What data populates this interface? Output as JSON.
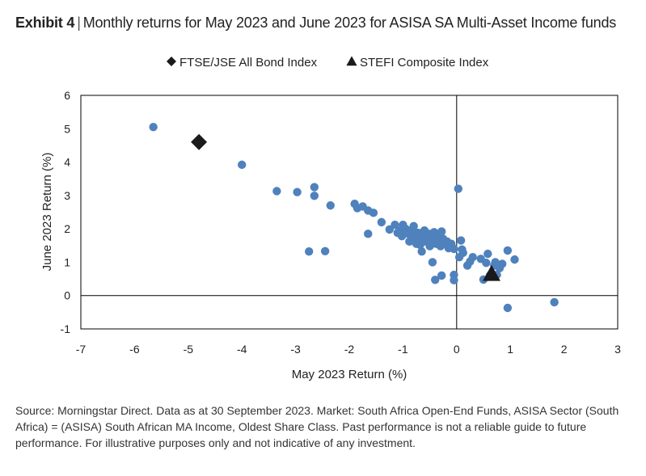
{
  "header": {
    "exhibit_label": "Exhibit 4",
    "separator": "|",
    "title": "Monthly returns for May 2023 and June 2023 for ASISA SA Multi-Asset Income funds"
  },
  "chart_data": {
    "type": "scatter",
    "xlabel": "May 2023 Return (%)",
    "ylabel": "June 2023 Return (%)",
    "xlim": [
      -7,
      3
    ],
    "ylim": [
      -1,
      6
    ],
    "xticks": [
      -7,
      -6,
      -5,
      -4,
      -3,
      -2,
      -1,
      0,
      1,
      2,
      3
    ],
    "yticks": [
      -1,
      0,
      1,
      2,
      3,
      4,
      5,
      6
    ],
    "grid": false,
    "legend_position": "top-center",
    "colors": {
      "funds": "#4f81bd",
      "markers": "#1a1a1a",
      "axes": "#000000"
    },
    "series": [
      {
        "marker": "circle",
        "points": [
          [
            -5.65,
            5.05
          ],
          [
            -4.0,
            3.92
          ],
          [
            -3.35,
            3.13
          ],
          [
            -2.97,
            3.1
          ],
          [
            -2.65,
            3.25
          ],
          [
            -2.65,
            2.99
          ],
          [
            -2.35,
            2.7
          ],
          [
            -2.75,
            1.32
          ],
          [
            -2.45,
            1.33
          ],
          [
            -1.9,
            2.75
          ],
          [
            -1.85,
            2.62
          ],
          [
            -1.75,
            2.67
          ],
          [
            -1.65,
            2.55
          ],
          [
            -1.55,
            2.48
          ],
          [
            -1.4,
            2.2
          ],
          [
            -1.65,
            1.85
          ],
          [
            -1.25,
            1.98
          ],
          [
            -1.15,
            2.12
          ],
          [
            -1.1,
            1.88
          ],
          [
            -1.05,
            1.95
          ],
          [
            -1.0,
            2.12
          ],
          [
            -1.02,
            1.78
          ],
          [
            -0.95,
            2.0
          ],
          [
            -0.9,
            1.85
          ],
          [
            -0.88,
            1.62
          ],
          [
            -0.85,
            1.95
          ],
          [
            -0.8,
            2.08
          ],
          [
            -0.8,
            1.75
          ],
          [
            -0.75,
            1.55
          ],
          [
            -0.72,
            1.88
          ],
          [
            -0.7,
            1.7
          ],
          [
            -0.68,
            1.52
          ],
          [
            -0.65,
            1.32
          ],
          [
            -0.62,
            1.8
          ],
          [
            -0.6,
            1.95
          ],
          [
            -0.58,
            1.62
          ],
          [
            -0.55,
            1.7
          ],
          [
            -0.52,
            1.85
          ],
          [
            -0.5,
            1.48
          ],
          [
            -0.48,
            1.75
          ],
          [
            -0.45,
            1.6
          ],
          [
            -0.42,
            1.9
          ],
          [
            -0.4,
            1.72
          ],
          [
            -0.38,
            1.55
          ],
          [
            -0.35,
            1.8
          ],
          [
            -0.32,
            1.65
          ],
          [
            -0.3,
            1.48
          ],
          [
            -0.28,
            1.92
          ],
          [
            -0.25,
            1.7
          ],
          [
            -0.22,
            1.56
          ],
          [
            -0.18,
            1.62
          ],
          [
            -0.15,
            1.42
          ],
          [
            -0.1,
            1.55
          ],
          [
            -0.05,
            1.4
          ],
          [
            -0.45,
            1.0
          ],
          [
            -0.4,
            0.47
          ],
          [
            -0.28,
            0.6
          ],
          [
            -0.05,
            0.62
          ],
          [
            -0.05,
            0.46
          ],
          [
            0.03,
            3.2
          ],
          [
            0.05,
            1.15
          ],
          [
            0.08,
            1.65
          ],
          [
            0.1,
            1.38
          ],
          [
            0.12,
            1.28
          ],
          [
            0.2,
            0.9
          ],
          [
            0.25,
            1.02
          ],
          [
            0.3,
            1.15
          ],
          [
            0.45,
            1.1
          ],
          [
            0.5,
            0.48
          ],
          [
            0.55,
            0.98
          ],
          [
            0.58,
            1.25
          ],
          [
            0.62,
            0.6
          ],
          [
            0.7,
            0.9
          ],
          [
            0.72,
            1.0
          ],
          [
            0.75,
            0.62
          ],
          [
            0.8,
            0.82
          ],
          [
            0.85,
            0.95
          ],
          [
            0.95,
            1.35
          ],
          [
            1.08,
            1.08
          ],
          [
            0.95,
            -0.37
          ],
          [
            1.82,
            -0.2
          ]
        ]
      },
      {
        "name": "FTSE/JSE All Bond Index",
        "marker": "diamond",
        "points": [
          [
            -4.8,
            4.6
          ]
        ]
      },
      {
        "name": "STEFI Composite Index",
        "marker": "triangle",
        "points": [
          [
            0.65,
            0.65
          ]
        ]
      }
    ]
  },
  "footnote": "Source: Morningstar Direct. Data as at 30 September 2023. Market: South Africa Open-End Funds, ASISA Sector (South Africa) = (ASISA) South African MA Income, Oldest Share Class. Past performance is not a reliable guide to future performance. For illustrative purposes only and not indicative of any investment."
}
